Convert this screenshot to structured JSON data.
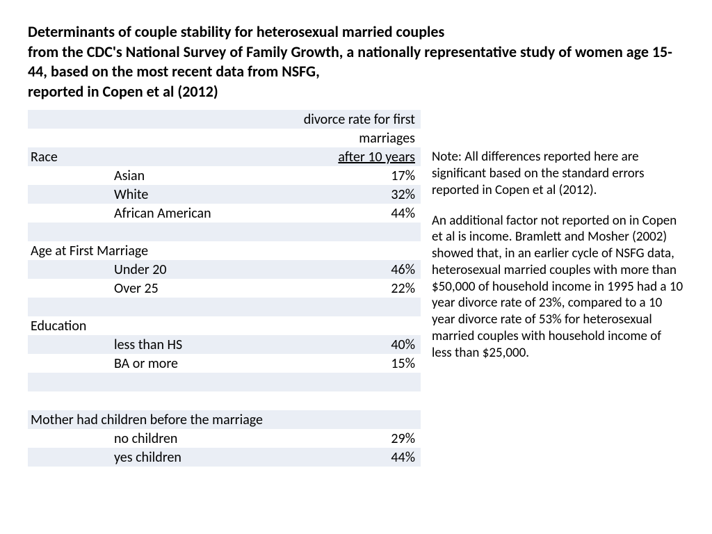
{
  "title_line1": "Determinants of couple stability for heterosexual married couples",
  "title_line2": "from the CDC's National Survey of Family Growth, a nationally representative study of women age 15-44, based on the most recent data from NSFG,",
  "title_line3": "reported in Copen et al (2012)",
  "table": {
    "header_a": "Race",
    "header_c_line1": "divorce rate for first",
    "header_c_line2": "marriages",
    "header_c_line3": "after 10 years",
    "sections": [
      {
        "category": "",
        "rows": [
          {
            "label": "Asian",
            "value": "17%"
          },
          {
            "label": "White",
            "value": "32%"
          },
          {
            "label": "African American",
            "value": "44%"
          }
        ]
      },
      {
        "category": "Age at First Marriage",
        "rows": [
          {
            "label": "Under 20",
            "value": "46%"
          },
          {
            "label": "Over 25",
            "value": "22%"
          }
        ]
      },
      {
        "category": "Education",
        "rows": [
          {
            "label": "less than HS",
            "value": "40%"
          },
          {
            "label": "BA or more",
            "value": "15%"
          }
        ]
      },
      {
        "category": "Mother had children before the marriage",
        "rows": [
          {
            "label": "no children",
            "value": "29%"
          },
          {
            "label": "yes children",
            "value": "44%"
          }
        ]
      }
    ]
  },
  "note": {
    "p1": "Note: All differences reported here are significant based on the standard errors reported in Copen et al (2012).",
    "p2": "An additional factor not reported on in Copen et al is income. Bramlett and Mosher (2002) showed that, in an earlier cycle of NSFG data, heterosexual married couples with more than $50,000 of household income in 1995 had a 10 year divorce rate of 23%, compared to a 10 year divorce rate of 53% for heterosexual married couples with household income of less than $25,000."
  },
  "colors": {
    "stripe": "#eaeef5",
    "background": "#ffffff",
    "text": "#000000"
  }
}
